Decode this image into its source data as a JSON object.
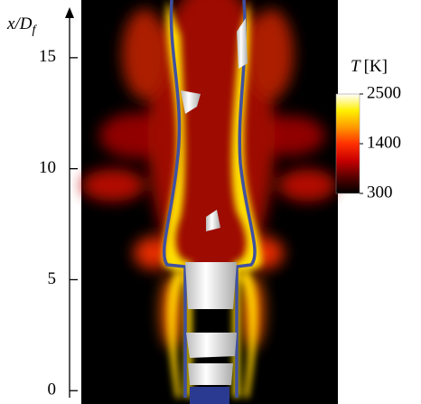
{
  "chart_data": {
    "type": "field",
    "ylabel": {
      "main": "x/D",
      "sub": "f"
    },
    "ylim": [
      -0.6,
      17.6
    ],
    "yticks": [
      0,
      5,
      10,
      15
    ],
    "colorbar_label": {
      "symbol": "T",
      "unit": "[K]"
    },
    "colorbar_lim": [
      300,
      2500
    ],
    "colorbar_ticks": [
      300,
      1400,
      2500
    ],
    "colormap": [
      "#000000",
      "#5a0000",
      "#c80000",
      "#ff3000",
      "#ff9a00",
      "#fff000",
      "#ffffff"
    ]
  }
}
